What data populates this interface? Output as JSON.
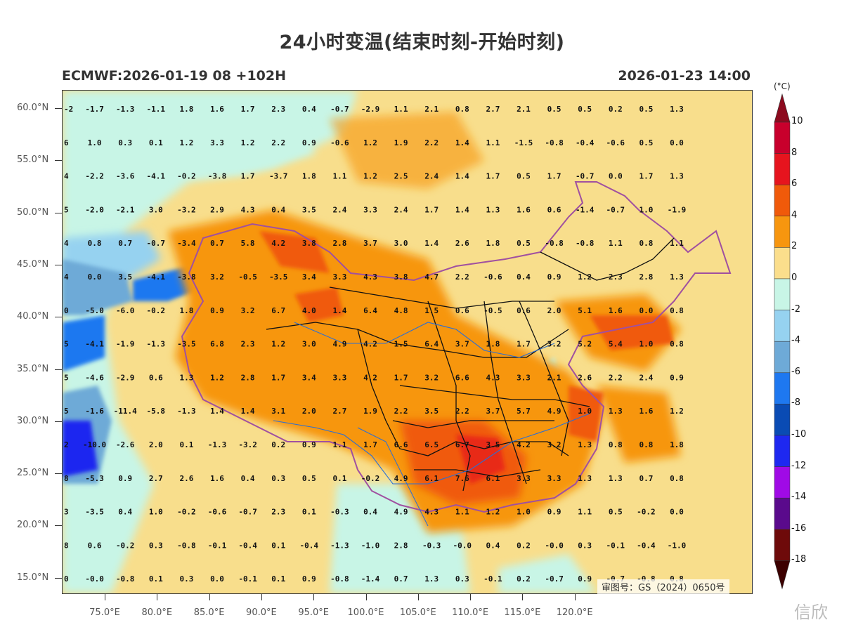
{
  "header": {
    "title": "24小时变温(结束时刻-开始时刻)",
    "model_run": "ECMWF:2026-01-19 08 +102H",
    "valid_time": "2026-01-23 14:00"
  },
  "axes": {
    "lat_labels": [
      "60.0°N",
      "55.0°N",
      "50.0°N",
      "45.0°N",
      "40.0°N",
      "35.0°N",
      "30.0°N",
      "25.0°N",
      "20.0°N",
      "15.0°N"
    ],
    "lon_labels": [
      "75.0°E",
      "80.0°E",
      "85.0°E",
      "90.0°E",
      "95.0°E",
      "100.0°E",
      "105.0°E",
      "110.0°E",
      "115.0°E",
      "120.0°E"
    ]
  },
  "colorbar": {
    "unit": "(°C)",
    "labels": [
      "10",
      "8",
      "6",
      "4",
      "2",
      "0",
      "-2",
      "-4",
      "-6",
      "-8",
      "-10",
      "-12",
      "-14",
      "-16",
      "-18"
    ],
    "colors": [
      "#8c0a1e",
      "#c8002c",
      "#e6141e",
      "#f05a0a",
      "#f7960f",
      "#fbde8c",
      "#c8f5e6",
      "#96d2f0",
      "#6eaad7",
      "#1e78f0",
      "#0a4bb4",
      "#1e28f0",
      "#a00ae6",
      "#5a0a8c",
      "#6e0a0a",
      "#3c0000"
    ]
  },
  "grid_values": [
    [
      "-2",
      "-1.7",
      "-1.3",
      "-1.1",
      "1.8",
      "1.6",
      "1.7",
      "2.3",
      "0.4",
      "-0.7",
      "-2.9",
      "1.1",
      "2.1",
      "0.8",
      "2.7",
      "2.1",
      "0.5",
      "0.5",
      "0.2",
      "0.5",
      "1.3"
    ],
    [
      "6",
      "1.0",
      "0.3",
      "0.1",
      "1.2",
      "3.3",
      "1.2",
      "2.2",
      "0.9",
      "-0.6",
      "1.2",
      "1.9",
      "2.2",
      "1.4",
      "1.1",
      "-1.5",
      "-0.8",
      "-0.4",
      "-0.6",
      "0.5",
      "0.0"
    ],
    [
      "4",
      "-2.2",
      "-3.6",
      "-4.1",
      "-0.2",
      "-3.8",
      "1.7",
      "-3.7",
      "1.8",
      "1.1",
      "1.2",
      "2.5",
      "2.4",
      "1.4",
      "1.7",
      "0.5",
      "1.7",
      "-0.7",
      "0.0",
      "1.7",
      "1.3"
    ],
    [
      "5",
      "-2.0",
      "-2.1",
      "3.0",
      "-3.2",
      "2.9",
      "4.3",
      "0.4",
      "3.5",
      "2.4",
      "3.3",
      "2.4",
      "1.7",
      "1.4",
      "1.3",
      "1.6",
      "0.6",
      "-1.4",
      "-0.7",
      "1.0",
      "-1.9"
    ],
    [
      "4",
      "0.8",
      "0.7",
      "-0.7",
      "-3.4",
      "0.7",
      "5.8",
      "4.2",
      "3.8",
      "2.8",
      "3.7",
      "3.0",
      "1.4",
      "2.6",
      "1.8",
      "0.5",
      "-0.8",
      "-0.8",
      "1.1",
      "0.8",
      "1.1"
    ],
    [
      "4",
      "0.0",
      "3.5",
      "-4.1",
      "-3.8",
      "3.2",
      "-0.5",
      "-3.5",
      "3.4",
      "3.3",
      "4.3",
      "3.8",
      "4.7",
      "2.2",
      "-0.6",
      "0.4",
      "0.9",
      "1.2",
      "2.3",
      "2.8",
      "1.3"
    ],
    [
      "0",
      "-5.0",
      "-6.0",
      "-0.2",
      "1.8",
      "0.9",
      "3.2",
      "6.7",
      "4.0",
      "1.4",
      "6.4",
      "4.8",
      "1.5",
      "0.6",
      "-0.5",
      "0.6",
      "2.0",
      "5.1",
      "1.6",
      "0.0",
      "0.8"
    ],
    [
      "5",
      "-4.1",
      "-1.9",
      "-1.3",
      "-3.5",
      "6.8",
      "2.3",
      "1.2",
      "3.0",
      "4.9",
      "4.2",
      "1.5",
      "6.4",
      "3.7",
      "1.8",
      "1.7",
      "3.2",
      "5.2",
      "5.4",
      "1.0",
      "0.8"
    ],
    [
      "5",
      "-4.6",
      "-2.9",
      "0.6",
      "1.3",
      "1.2",
      "2.8",
      "1.7",
      "3.4",
      "3.3",
      "4.2",
      "1.7",
      "3.2",
      "6.6",
      "4.3",
      "3.3",
      "2.1",
      "2.6",
      "2.2",
      "2.4",
      "0.9"
    ],
    [
      "5",
      "-1.6",
      "-11.4",
      "-5.8",
      "-1.3",
      "1.4",
      "1.4",
      "3.1",
      "2.0",
      "2.7",
      "1.9",
      "2.2",
      "3.5",
      "2.2",
      "3.7",
      "5.7",
      "4.9",
      "1.0",
      "1.3",
      "1.6",
      "1.2"
    ],
    [
      "2",
      "-10.0",
      "-2.6",
      "2.0",
      "0.1",
      "-1.3",
      "-3.2",
      "0.2",
      "0.9",
      "1.1",
      "1.7",
      "6.6",
      "6.5",
      "6.7",
      "3.5",
      "4.2",
      "3.2",
      "1.3",
      "0.8",
      "0.8",
      "1.8"
    ],
    [
      "8",
      "-5.3",
      "0.9",
      "2.7",
      "2.6",
      "1.6",
      "0.4",
      "0.3",
      "0.5",
      "0.1",
      "-0.2",
      "4.9",
      "6.1",
      "7.6",
      "6.1",
      "3.3",
      "3.3",
      "1.3",
      "1.3",
      "0.7",
      "0.8"
    ],
    [
      "3",
      "-3.5",
      "0.4",
      "1.0",
      "-0.2",
      "-0.6",
      "-0.7",
      "2.3",
      "0.1",
      "-0.3",
      "0.4",
      "4.9",
      "4.3",
      "1.1",
      "1.2",
      "1.0",
      "0.9",
      "1.1",
      "0.5",
      "-0.2",
      "0.0"
    ],
    [
      "8",
      "0.6",
      "-0.2",
      "0.3",
      "-0.8",
      "-0.1",
      "-0.4",
      "0.1",
      "-0.4",
      "-1.3",
      "-1.0",
      "2.8",
      "-0.3",
      "-0.0",
      "0.4",
      "0.2",
      "-0.0",
      "0.3",
      "-0.1",
      "-0.4",
      "-1.0"
    ],
    [
      "0",
      "-0.0",
      "-0.8",
      "0.1",
      "0.3",
      "0.0",
      "-0.1",
      "0.1",
      "0.9",
      "-0.8",
      "-1.4",
      "0.7",
      "1.3",
      "0.3",
      "-0.1",
      "0.2",
      "-0.7",
      "0.9",
      "-0.7",
      "-0.8",
      "0.8"
    ]
  ],
  "approval_number": "审图号：GS（2024）0650号",
  "watermark_text": "信欣",
  "region_colors": {
    "cold_deep": "#1e28f0",
    "cold": "#1e78f0",
    "cool": "#96d2f0",
    "neutral_cool": "#c8f5e6",
    "neutral_warm": "#fbde8c",
    "warm": "#f7960f",
    "hot": "#f05a0a",
    "very_hot": "#e6141e",
    "border_purple": "#a050a0",
    "province_black": "#111111",
    "river_blue": "#2a6fd6"
  }
}
